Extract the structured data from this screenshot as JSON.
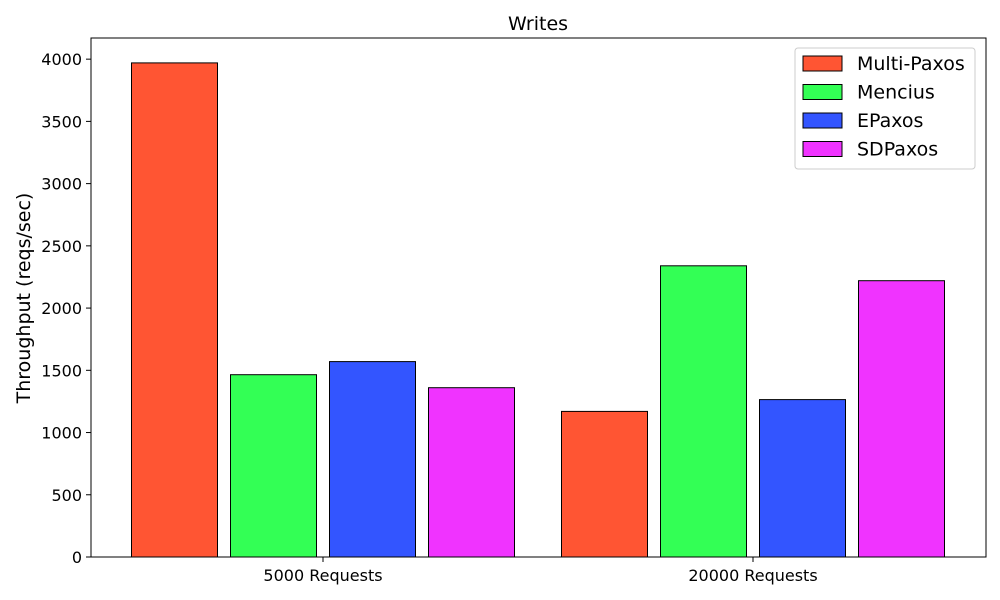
{
  "chart_data": {
    "type": "bar",
    "title": "Writes",
    "xlabel": "",
    "ylabel": "Throughput (reqs/sec)",
    "categories": [
      "5000 Requests",
      "20000 Requests"
    ],
    "series": [
      {
        "name": "Multi-Paxos",
        "color": "#ff5533",
        "values": [
          3970,
          1170
        ]
      },
      {
        "name": "Mencius",
        "color": "#33ff55",
        "values": [
          1465,
          2340
        ]
      },
      {
        "name": "EPaxos",
        "color": "#3355ff",
        "values": [
          1570,
          1265
        ]
      },
      {
        "name": "SDPaxos",
        "color": "#f033ff",
        "values": [
          1360,
          2220
        ]
      }
    ],
    "ylim": [
      0,
      4170
    ],
    "yticks": [
      0,
      500,
      1000,
      1500,
      2000,
      2500,
      3000,
      3500,
      4000
    ],
    "grid": false,
    "legend_position": "top-right"
  }
}
